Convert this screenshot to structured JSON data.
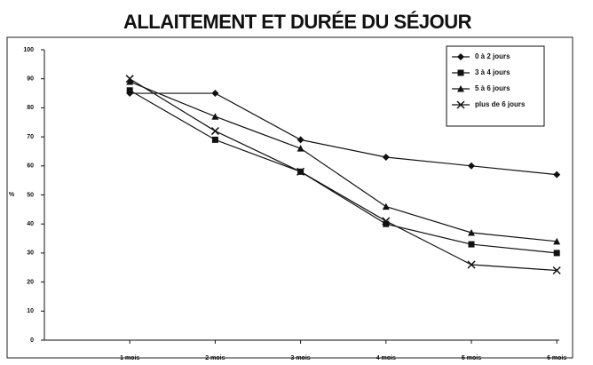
{
  "chart_data": {
    "type": "line",
    "title": "ALLAITEMENT ET DURÉE DU SÉJOUR",
    "y_label": "%",
    "categories": [
      "1 mois",
      "2 mois",
      "3 mois",
      "4 mois",
      "5 mois",
      "6 mois"
    ],
    "series": [
      {
        "name": "0 à 2 jours",
        "color": "#111111",
        "marker": "diamond",
        "values": [
          85,
          85,
          69,
          63,
          60,
          57
        ]
      },
      {
        "name": "3 à 4 jours",
        "color": "#111111",
        "marker": "square",
        "values": [
          86,
          69,
          58,
          40,
          33,
          30
        ]
      },
      {
        "name": "5 à 6 jours",
        "color": "#111111",
        "marker": "triangle",
        "values": [
          89,
          77,
          66,
          46,
          37,
          34
        ]
      },
      {
        "name": "plus de 6 jours",
        "color": "#111111",
        "marker": "x",
        "values": [
          90,
          72,
          58,
          41,
          26,
          24
        ]
      }
    ],
    "ylim": [
      0,
      100
    ],
    "yticks": [
      0,
      10,
      20,
      30,
      40,
      50,
      60,
      70,
      80,
      90,
      100
    ],
    "legend": "top-right",
    "grid": false
  }
}
